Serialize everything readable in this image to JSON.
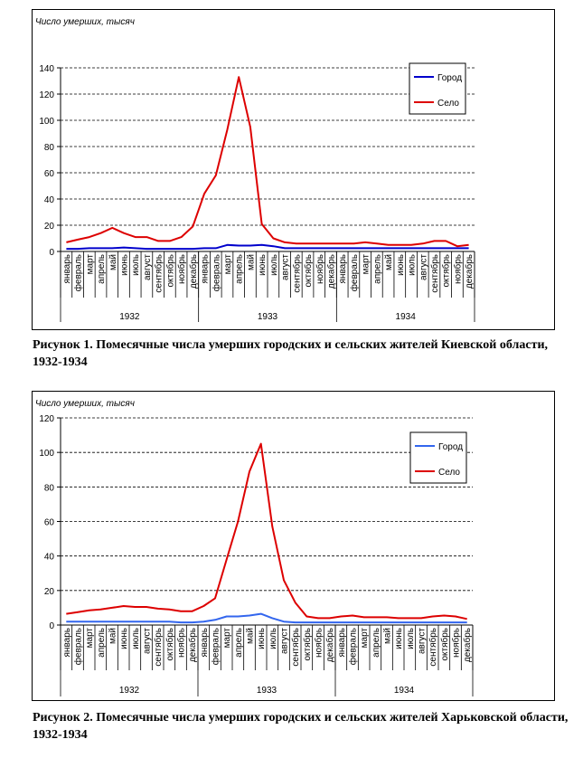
{
  "chart_data": [
    {
      "type": "line",
      "ylabel": "Число умерших, тысяч",
      "ylim": [
        0,
        140
      ],
      "yticks": [
        0,
        20,
        40,
        60,
        80,
        100,
        120,
        140
      ],
      "grid": true,
      "legend_position": "top-right",
      "months": [
        "январь",
        "февраль",
        "март",
        "апрель",
        "май",
        "июнь",
        "июль",
        "август",
        "сентябрь",
        "октябрь",
        "ноябрь",
        "декабрь"
      ],
      "years": [
        "1932",
        "1933",
        "1934"
      ],
      "series": [
        {
          "name": "Город",
          "color": "#0000cc",
          "values": [
            2,
            2,
            2.5,
            2.5,
            2.5,
            3,
            2.5,
            2,
            2,
            2,
            2,
            2,
            2.5,
            2.5,
            5,
            4.5,
            4.5,
            5,
            4,
            2.5,
            2.5,
            2.5,
            2.5,
            2.5,
            2.5,
            2.5,
            2.5,
            2.5,
            2.5,
            2.5,
            2.5,
            2.5,
            2.5,
            2.5,
            2.5,
            2.5
          ]
        },
        {
          "name": "Село",
          "color": "#dd0000",
          "values": [
            7,
            9,
            11,
            14,
            18,
            14,
            11,
            11,
            8,
            8,
            11,
            19,
            44,
            58,
            93,
            133,
            95,
            21,
            10,
            7,
            6,
            6,
            6,
            6,
            6,
            6,
            7,
            6,
            5,
            5,
            5,
            6,
            8,
            8,
            4,
            5
          ]
        }
      ]
    },
    {
      "type": "line",
      "ylabel": "Число умерших, тысяч",
      "ylim": [
        0,
        120
      ],
      "yticks": [
        0,
        20,
        40,
        60,
        80,
        100,
        120
      ],
      "grid": true,
      "legend_position": "top-right",
      "months": [
        "январь",
        "февраль",
        "март",
        "апрель",
        "май",
        "июнь",
        "июль",
        "август",
        "сентябрь",
        "октябрь",
        "ноябрь",
        "декабрь"
      ],
      "years": [
        "1932",
        "1933",
        "1934"
      ],
      "series": [
        {
          "name": "Город",
          "color": "#3366ee",
          "values": [
            2,
            2,
            2,
            2,
            2,
            2,
            2,
            2,
            2,
            2,
            1.5,
            1.5,
            2,
            3,
            5,
            5,
            5.5,
            6.5,
            4,
            2,
            1.5,
            1.5,
            1.5,
            1.5,
            1.5,
            1.5,
            1.5,
            1.5,
            1.5,
            1.5,
            1.5,
            1.5,
            1.5,
            1.5,
            1.5,
            1.5
          ]
        },
        {
          "name": "Село",
          "color": "#dd0000",
          "values": [
            6.5,
            7.5,
            8.5,
            9,
            10,
            11,
            10.5,
            10.5,
            9.5,
            9,
            8,
            8,
            11,
            15.5,
            38,
            60,
            89,
            105,
            57,
            26,
            13,
            5,
            4,
            4,
            5,
            5.5,
            4.5,
            4.5,
            4.5,
            4,
            4,
            4,
            5,
            5.5,
            5,
            3.5
          ]
        }
      ]
    }
  ],
  "captions": [
    "Рисунок 1. Помесячные числа умерших городских и сельских жителей Киевской области, 1932-1934",
    "Рисунок 2. Помесячные числа умерших городских и сельских жителей Харьковской области, 1932-1934"
  ]
}
